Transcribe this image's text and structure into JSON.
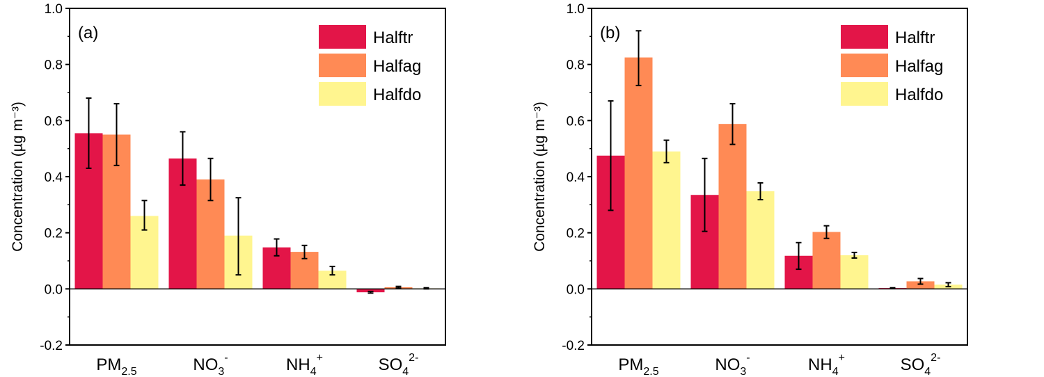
{
  "colors": {
    "Halftr": "#E31548",
    "Halfag": "#FF8A55",
    "Halfdo": "#FFF58F"
  },
  "chart_data": [
    {
      "type": "bar",
      "panel_label": "(a)",
      "ylabel": "Concentration (µg m⁻³)",
      "ylim": [
        -0.2,
        1.0
      ],
      "yticks": [
        "-0.2",
        "0.0",
        "0.2",
        "0.4",
        "0.6",
        "0.8",
        "1.0"
      ],
      "categories": [
        {
          "base": "PM",
          "sub": "2.5",
          "sup": ""
        },
        {
          "base": "NO",
          "sub": "3",
          "sup": "-"
        },
        {
          "base": "NH",
          "sub": "4",
          "sup": "+"
        },
        {
          "base": "SO",
          "sub": "4",
          "sup": "2-"
        }
      ],
      "legend_position": "top-right",
      "series": [
        {
          "name": "Halftr",
          "values": [
            0.555,
            0.465,
            0.148,
            -0.012
          ],
          "err_low": [
            0.43,
            0.37,
            0.118,
            -0.015
          ],
          "err_high": [
            0.68,
            0.56,
            0.178,
            -0.009
          ]
        },
        {
          "name": "Halfag",
          "values": [
            0.55,
            0.39,
            0.132,
            0.006
          ],
          "err_low": [
            0.44,
            0.315,
            0.108,
            0.003
          ],
          "err_high": [
            0.66,
            0.465,
            0.155,
            0.009
          ]
        },
        {
          "name": "Halfdo",
          "values": [
            0.26,
            0.19,
            0.065,
            0.002
          ],
          "err_low": [
            0.21,
            0.05,
            0.05,
            0.0
          ],
          "err_high": [
            0.315,
            0.325,
            0.08,
            0.004
          ]
        }
      ]
    },
    {
      "type": "bar",
      "panel_label": "(b)",
      "ylabel": "Concentration (µg m⁻³)",
      "ylim": [
        -0.2,
        1.0
      ],
      "yticks": [
        "-0.2",
        "0.0",
        "0.2",
        "0.4",
        "0.6",
        "0.8",
        "1.0"
      ],
      "categories": [
        {
          "base": "PM",
          "sub": "2.5",
          "sup": ""
        },
        {
          "base": "NO",
          "sub": "3",
          "sup": "-"
        },
        {
          "base": "NH",
          "sub": "4",
          "sup": "+"
        },
        {
          "base": "SO",
          "sub": "4",
          "sup": "2-"
        }
      ],
      "legend_position": "top-right",
      "series": [
        {
          "name": "Halftr",
          "values": [
            0.475,
            0.335,
            0.118,
            0.003
          ],
          "err_low": [
            0.28,
            0.205,
            0.07,
            0.002
          ],
          "err_high": [
            0.67,
            0.465,
            0.165,
            0.004
          ]
        },
        {
          "name": "Halfag",
          "values": [
            0.825,
            0.588,
            0.203,
            0.027
          ],
          "err_low": [
            0.725,
            0.515,
            0.18,
            0.017
          ],
          "err_high": [
            0.92,
            0.66,
            0.225,
            0.037
          ]
        },
        {
          "name": "Halfdo",
          "values": [
            0.49,
            0.348,
            0.12,
            0.015
          ],
          "err_low": [
            0.45,
            0.318,
            0.11,
            0.008
          ],
          "err_high": [
            0.53,
            0.378,
            0.13,
            0.022
          ]
        }
      ]
    }
  ]
}
